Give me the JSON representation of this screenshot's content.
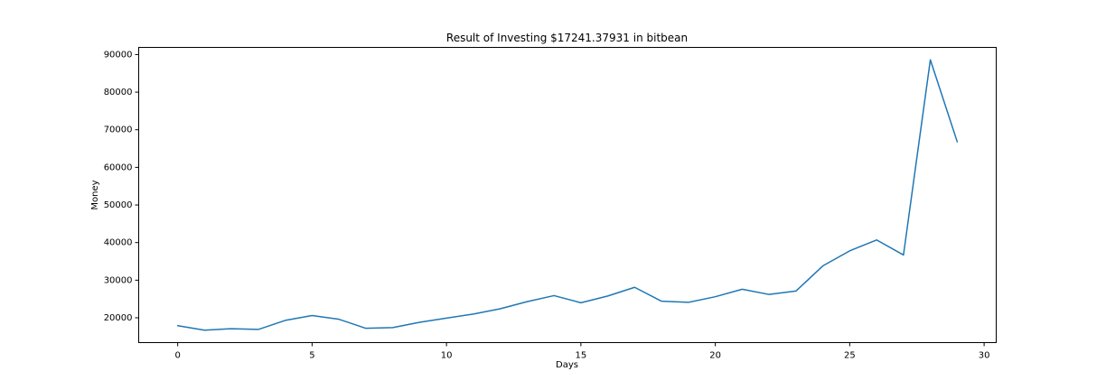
{
  "chart_data": {
    "type": "line",
    "title": "Result of Investing $17241.37931 in bitbean",
    "xlabel": "Days",
    "ylabel": "Money",
    "xlim": [
      -1.45,
      30.45
    ],
    "ylim": [
      13400,
      91900
    ],
    "xticks": [
      0,
      5,
      10,
      15,
      20,
      25,
      30
    ],
    "yticks": [
      20000,
      30000,
      40000,
      50000,
      60000,
      70000,
      80000,
      90000
    ],
    "grid": false,
    "line_color": "#1f77b4",
    "series": [
      {
        "x": [
          0,
          1,
          2,
          3,
          4,
          5,
          6,
          7,
          8,
          9,
          10,
          11,
          12,
          13,
          14,
          15,
          16,
          17,
          18,
          19,
          20,
          21,
          22,
          23,
          24,
          25,
          26,
          27,
          28,
          29
        ],
        "values": [
          17900,
          16700,
          17100,
          16900,
          19300,
          20600,
          19600,
          17200,
          17400,
          18800,
          19900,
          21000,
          22400,
          24300,
          25900,
          24000,
          25800,
          28100,
          24400,
          24100,
          25600,
          27600,
          26200,
          27100,
          33800,
          37800,
          40700,
          36700,
          88600,
          66800
        ]
      }
    ]
  }
}
